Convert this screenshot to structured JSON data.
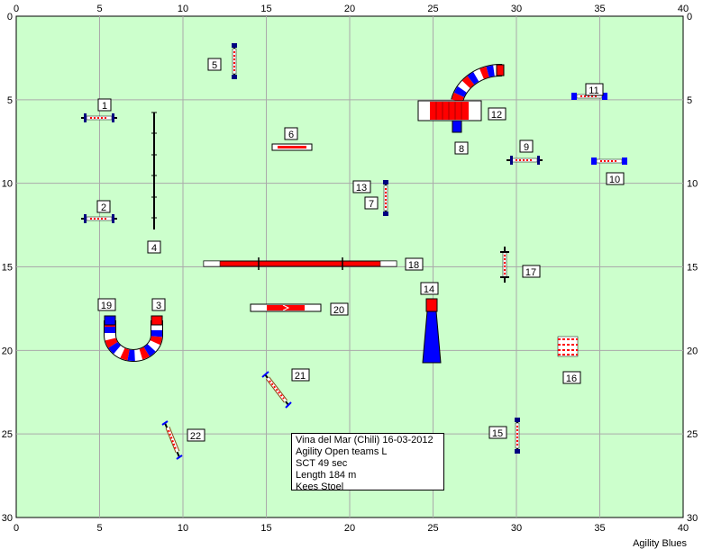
{
  "axis": {
    "x_ticks": [
      "0",
      "5",
      "10",
      "15",
      "20",
      "25",
      "30",
      "35",
      "40"
    ],
    "y_ticks": [
      "0",
      "5",
      "10",
      "15",
      "20",
      "25",
      "30"
    ],
    "x_range": [
      0,
      40
    ],
    "y_range": [
      0,
      30
    ],
    "grid": true
  },
  "colors": {
    "field": "#ccffcc",
    "grid": "#aaaaaa",
    "red": "#ff0000",
    "blue": "#0000ff",
    "white": "#ffffff",
    "dark": "#000080"
  },
  "obstacle_labels": [
    "1",
    "2",
    "3",
    "4",
    "5",
    "6",
    "7",
    "8",
    "9",
    "10",
    "11",
    "12",
    "13",
    "14",
    "15",
    "16",
    "17",
    "18",
    "19",
    "20",
    "21",
    "22"
  ],
  "info": {
    "line1": "Vina del Mar (Chili) 16-03-2012",
    "line2": "Agility Open teams L",
    "line3": "SCT 49 sec",
    "line4": "Length 184 m",
    "line5": "Kees Stoel"
  },
  "brand": "Agility Blues"
}
